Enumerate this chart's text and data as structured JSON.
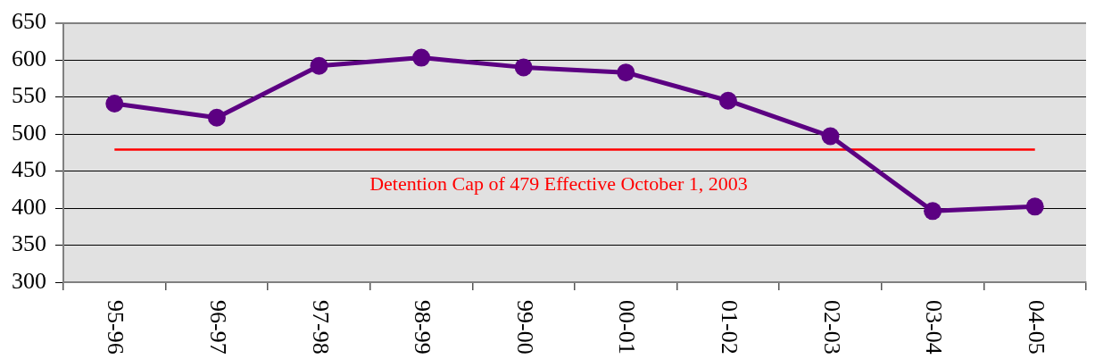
{
  "chart_data": {
    "type": "line",
    "categories": [
      "95-96",
      "96-97",
      "97-98",
      "98-99",
      "99-00",
      "00-01",
      "01-02",
      "02-03",
      "03-04",
      "04-05"
    ],
    "series": [
      {
        "color": "#5c0082",
        "values": [
          541,
          522,
          592,
          603,
          590,
          583,
          545,
          497,
          396,
          402
        ]
      }
    ],
    "ylim": [
      300,
      650
    ],
    "yticks": [
      300,
      350,
      400,
      450,
      500,
      550,
      600,
      650
    ],
    "grid": "y",
    "marker": "circle",
    "line_style": "solid",
    "ref_lines": [
      {
        "axis": "y",
        "value": 479,
        "label": "Detention Cap of 479 Effective October 1, 2003",
        "color": "#ff0000"
      }
    ]
  }
}
